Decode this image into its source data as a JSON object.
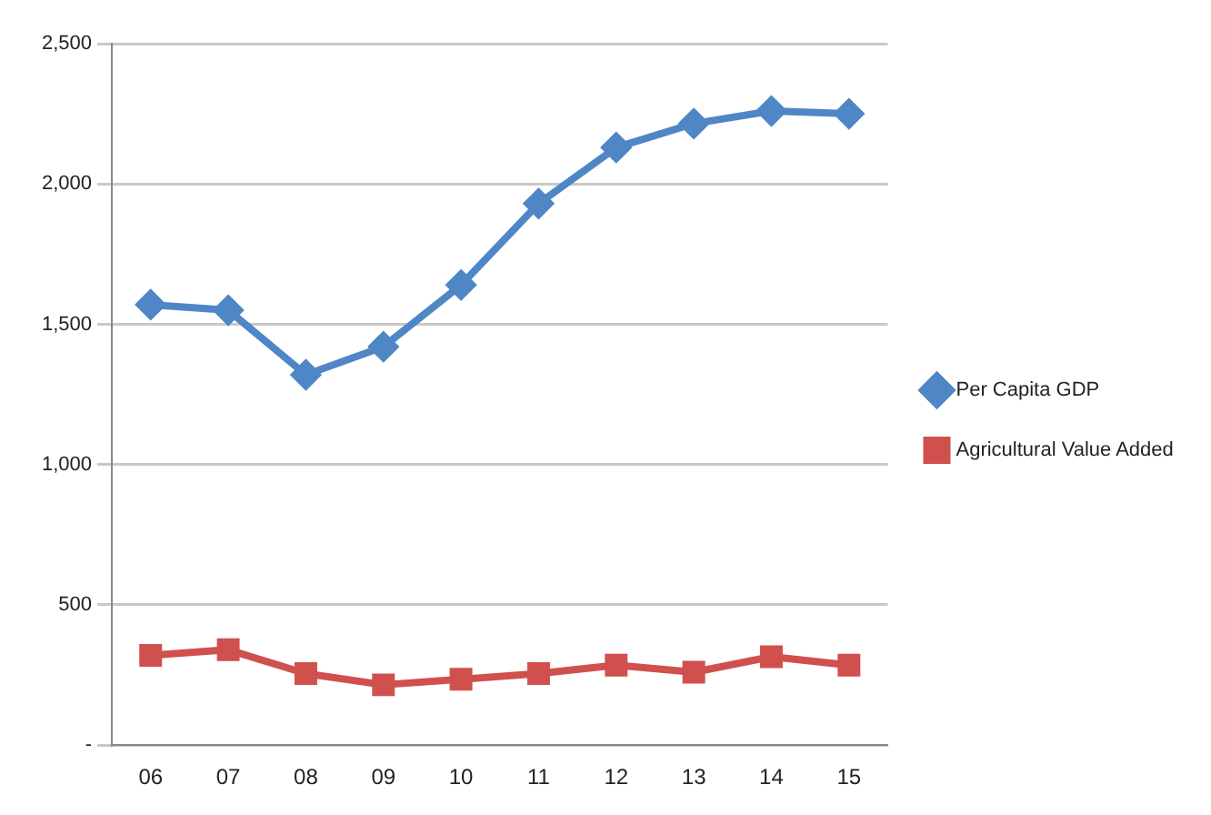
{
  "chart_data": {
    "type": "line",
    "categories": [
      "06",
      "07",
      "08",
      "09",
      "10",
      "11",
      "12",
      "13",
      "14",
      "15"
    ],
    "series": [
      {
        "name": "Per Capita GDP",
        "color": "#4f86c6",
        "marker": "diamond",
        "values": [
          1570,
          1550,
          1320,
          1420,
          1640,
          1930,
          2130,
          2215,
          2260,
          2250
        ]
      },
      {
        "name": "Agricultural Value Added",
        "color": "#d0504d",
        "marker": "square",
        "values": [
          320,
          340,
          255,
          215,
          235,
          255,
          285,
          260,
          315,
          285
        ]
      }
    ],
    "ylim": [
      0,
      2500
    ],
    "yticks": [
      {
        "value": 0,
        "label": "-"
      },
      {
        "value": 500,
        "label": "500"
      },
      {
        "value": 1000,
        "label": "1,000"
      },
      {
        "value": 1500,
        "label": "1,500"
      },
      {
        "value": 2000,
        "label": "2,000"
      },
      {
        "value": 2500,
        "label": "2,500"
      }
    ],
    "grid": "y",
    "legend": "right",
    "line_style": "solid"
  }
}
